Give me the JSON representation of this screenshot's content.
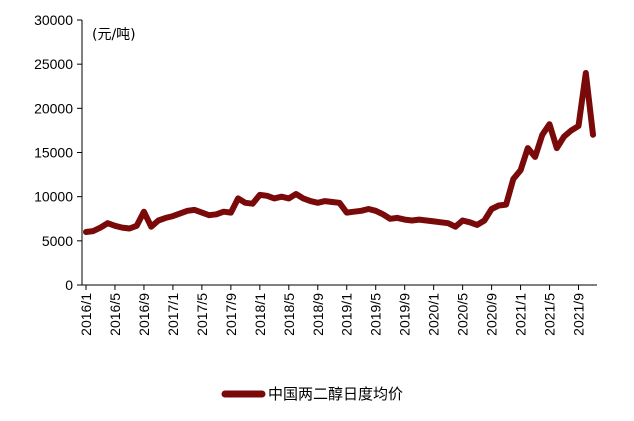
{
  "chart_data": {
    "type": "line",
    "unit_label": "(元/吨)",
    "ylim": [
      0,
      30000
    ],
    "yticks": [
      0,
      5000,
      10000,
      15000,
      20000,
      25000,
      30000
    ],
    "xticks": [
      "2016/1",
      "2016/5",
      "2016/9",
      "2017/1",
      "2017/5",
      "2017/9",
      "2018/1",
      "2018/5",
      "2018/9",
      "2019/1",
      "2019/5",
      "2019/9",
      "2020/1",
      "2020/5",
      "2020/9",
      "2021/1",
      "2021/5",
      "2021/9"
    ],
    "grid": false,
    "legend_position": "bottom",
    "color": "#7a0a0a",
    "series": [
      {
        "name": "中国两二醇日度均价",
        "x": [
          "2016/1",
          "2016/2",
          "2016/3",
          "2016/4",
          "2016/5",
          "2016/6",
          "2016/7",
          "2016/8",
          "2016/9",
          "2016/10",
          "2016/11",
          "2016/12",
          "2017/1",
          "2017/2",
          "2017/3",
          "2017/4",
          "2017/5",
          "2017/6",
          "2017/7",
          "2017/8",
          "2017/9",
          "2017/10",
          "2017/11",
          "2017/12",
          "2018/1",
          "2018/2",
          "2018/3",
          "2018/4",
          "2018/5",
          "2018/6",
          "2018/7",
          "2018/8",
          "2018/9",
          "2018/10",
          "2018/11",
          "2018/12",
          "2019/1",
          "2019/2",
          "2019/3",
          "2019/4",
          "2019/5",
          "2019/6",
          "2019/7",
          "2019/8",
          "2019/9",
          "2019/10",
          "2019/11",
          "2019/12",
          "2020/1",
          "2020/2",
          "2020/3",
          "2020/4",
          "2020/5",
          "2020/6",
          "2020/7",
          "2020/8",
          "2020/9",
          "2020/10",
          "2020/11",
          "2020/12",
          "2021/1",
          "2021/2",
          "2021/3",
          "2021/4",
          "2021/5",
          "2021/6",
          "2021/7",
          "2021/8",
          "2021/9",
          "2021/10",
          "2021/11"
        ],
        "values": [
          6000,
          6100,
          6500,
          7000,
          6700,
          6500,
          6400,
          6700,
          8300,
          6600,
          7300,
          7600,
          7800,
          8100,
          8400,
          8500,
          8200,
          7900,
          8000,
          8300,
          8200,
          9800,
          9300,
          9200,
          10200,
          10100,
          9800,
          10000,
          9800,
          10300,
          9800,
          9500,
          9300,
          9500,
          9400,
          9300,
          8200,
          8300,
          8400,
          8600,
          8400,
          8000,
          7500,
          7600,
          7400,
          7300,
          7400,
          7300,
          7200,
          7100,
          7000,
          6600,
          7300,
          7100,
          6800,
          7300,
          8600,
          9000,
          9100,
          12000,
          13000,
          15500,
          14500,
          17000,
          18200,
          15500,
          16800,
          17500,
          18000,
          24000,
          17000
        ]
      }
    ]
  }
}
